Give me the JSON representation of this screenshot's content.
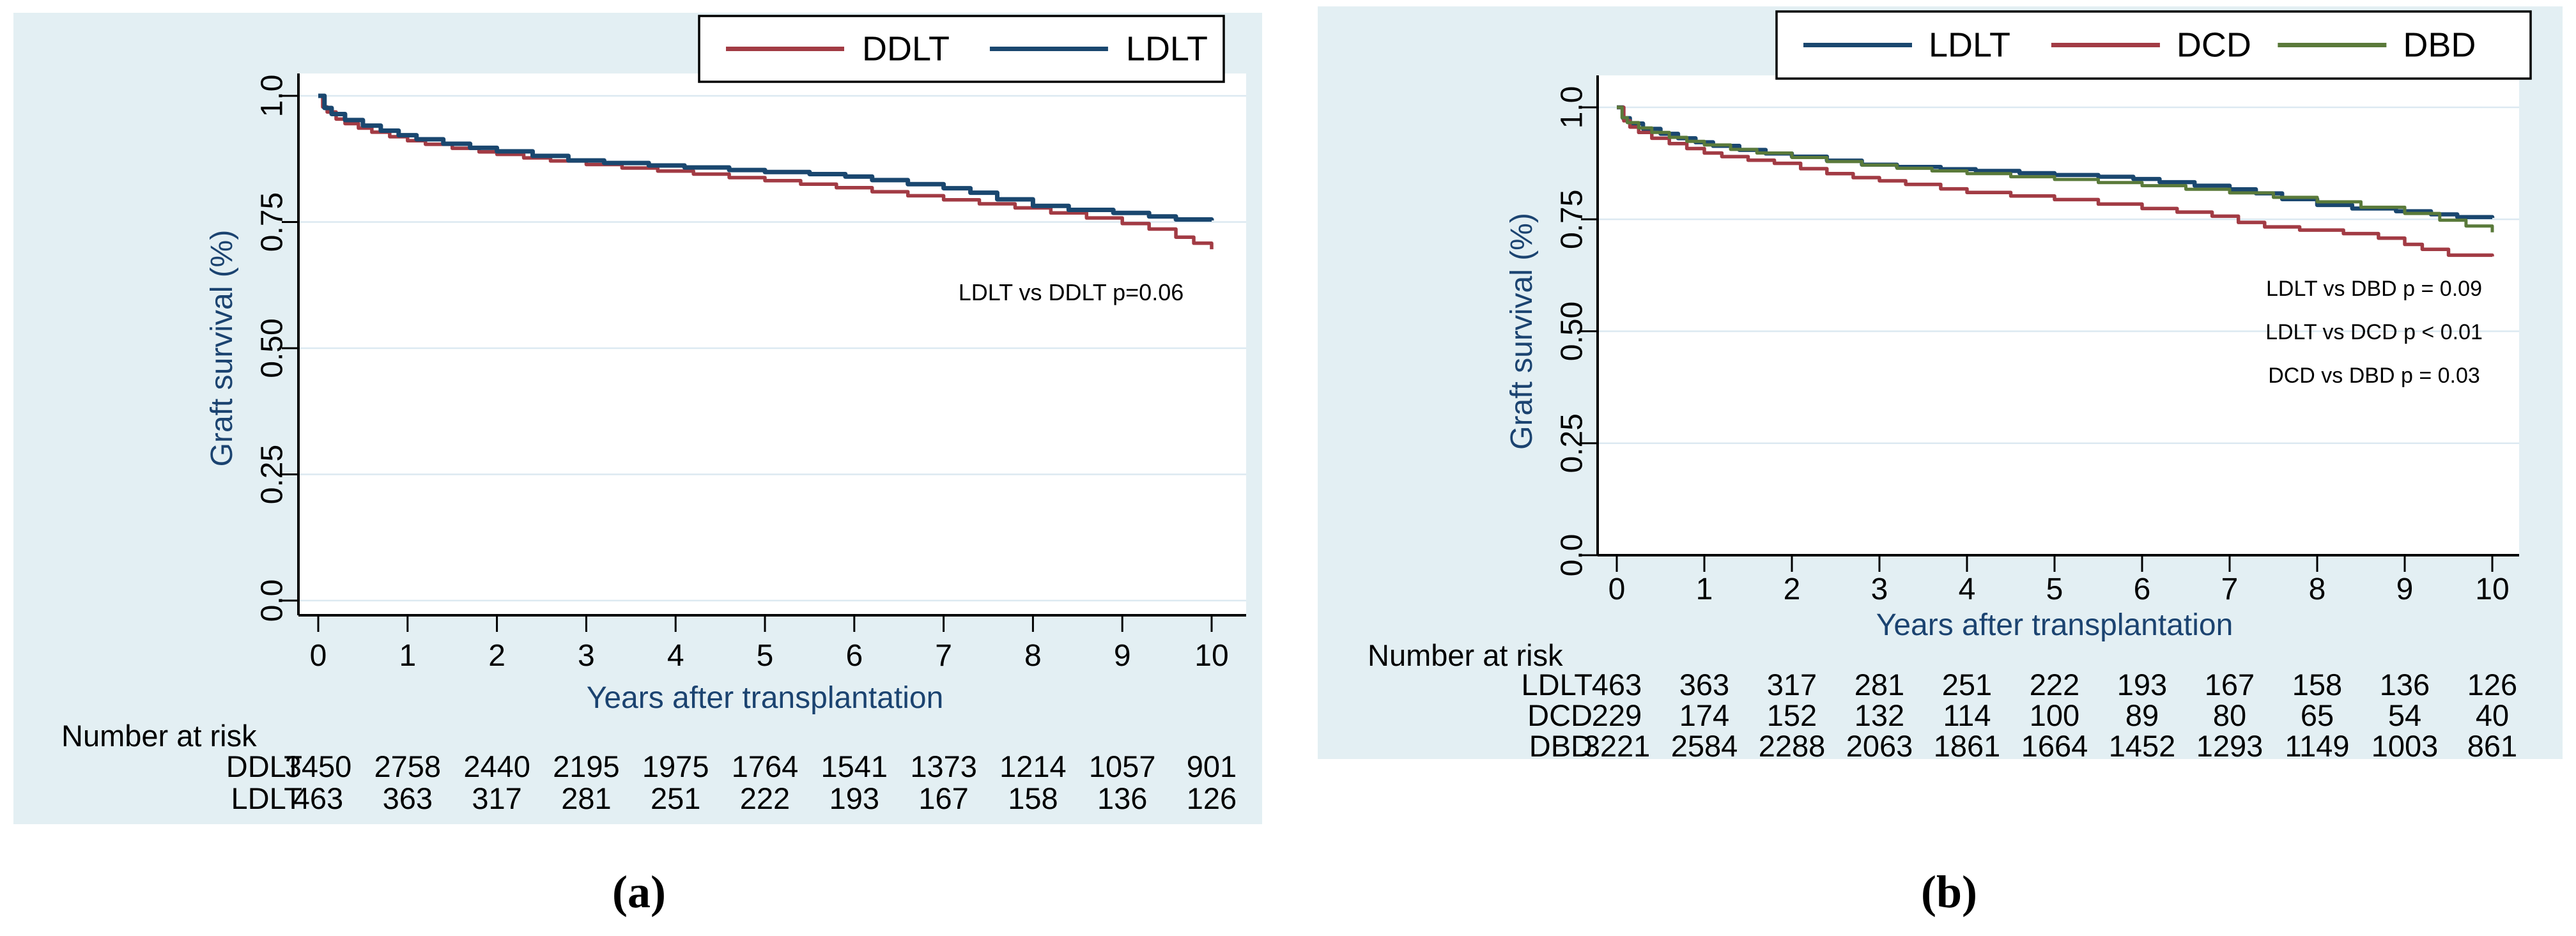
{
  "figure": {
    "captions": {
      "a": "(a)",
      "b": "(b)"
    },
    "colors": {
      "panel_background": "#e3eff3",
      "plot_background": "#ffffff",
      "gridline": "#dce9f1",
      "axis": "#000000",
      "axis_title": "#1b4370",
      "navy": "#1a476f",
      "maroon": "#a23b44",
      "green": "#5a7a3a"
    }
  },
  "chart_data": [
    {
      "panel": "a",
      "type": "line",
      "subtype": "kaplan-meier-step",
      "xlabel": "Years after transplantation",
      "ylabel": "Graft survival (%)",
      "xlim": [
        0,
        10
      ],
      "ylim": [
        0,
        1.04
      ],
      "grid": true,
      "x_ticks": [
        0,
        1,
        2,
        3,
        4,
        5,
        6,
        7,
        8,
        9,
        10
      ],
      "y_tick_labels": [
        "1.0",
        "0.75",
        "0.50",
        "0.25",
        "0.0"
      ],
      "y_tick_values": [
        1.0,
        0.75,
        0.5,
        0.25,
        0.0
      ],
      "legend_position": "top-right",
      "legend": [
        {
          "name": "DDLT",
          "color": "#a23b44"
        },
        {
          "name": "LDLT",
          "color": "#1a476f"
        }
      ],
      "annotations": [
        "LDLT vs DDLT p=0.06"
      ],
      "series": [
        {
          "name": "DDLT",
          "color": "#a23b44",
          "points": [
            [
              0,
              1
            ],
            [
              0.05,
              0.978
            ],
            [
              0.1,
              0.968
            ],
            [
              0.2,
              0.954
            ],
            [
              0.3,
              0.945
            ],
            [
              0.45,
              0.936
            ],
            [
              0.6,
              0.928
            ],
            [
              0.8,
              0.919
            ],
            [
              1,
              0.911
            ],
            [
              1.2,
              0.904
            ],
            [
              1.5,
              0.896
            ],
            [
              1.8,
              0.889
            ],
            [
              2,
              0.884
            ],
            [
              2.3,
              0.877
            ],
            [
              2.6,
              0.871
            ],
            [
              3,
              0.864
            ],
            [
              3.4,
              0.857
            ],
            [
              3.8,
              0.851
            ],
            [
              4.2,
              0.845
            ],
            [
              4.6,
              0.838
            ],
            [
              5,
              0.832
            ],
            [
              5.4,
              0.825
            ],
            [
              5.8,
              0.818
            ],
            [
              6.2,
              0.81
            ],
            [
              6.6,
              0.802
            ],
            [
              7,
              0.794
            ],
            [
              7.4,
              0.786
            ],
            [
              7.8,
              0.778
            ],
            [
              8.2,
              0.768
            ],
            [
              8.6,
              0.758
            ],
            [
              9,
              0.747
            ],
            [
              9.3,
              0.736
            ],
            [
              9.6,
              0.72
            ],
            [
              9.8,
              0.708
            ],
            [
              10,
              0.696
            ]
          ]
        },
        {
          "name": "LDLT",
          "color": "#1a476f",
          "points": [
            [
              0,
              1
            ],
            [
              0.07,
              0.976
            ],
            [
              0.15,
              0.964
            ],
            [
              0.3,
              0.952
            ],
            [
              0.5,
              0.941
            ],
            [
              0.7,
              0.931
            ],
            [
              0.9,
              0.922
            ],
            [
              1.1,
              0.914
            ],
            [
              1.4,
              0.905
            ],
            [
              1.7,
              0.897
            ],
            [
              2,
              0.89
            ],
            [
              2.4,
              0.881
            ],
            [
              2.8,
              0.872
            ],
            [
              3.2,
              0.867
            ],
            [
              3.7,
              0.862
            ],
            [
              4.1,
              0.858
            ],
            [
              4.6,
              0.853
            ],
            [
              5,
              0.849
            ],
            [
              5.5,
              0.845
            ],
            [
              5.9,
              0.84
            ],
            [
              6.2,
              0.833
            ],
            [
              6.6,
              0.825
            ],
            [
              7,
              0.817
            ],
            [
              7.3,
              0.808
            ],
            [
              7.6,
              0.795
            ],
            [
              8,
              0.782
            ],
            [
              8.4,
              0.774
            ],
            [
              8.9,
              0.768
            ],
            [
              9.3,
              0.761
            ],
            [
              9.6,
              0.755
            ],
            [
              10,
              0.753
            ]
          ]
        }
      ],
      "risk_table": {
        "title": "Number at risk",
        "time_points": [
          0,
          1,
          2,
          3,
          4,
          5,
          6,
          7,
          8,
          9,
          10
        ],
        "rows": [
          {
            "label": "DDLT",
            "values": [
              3450,
              2758,
              2440,
              2195,
              1975,
              1764,
              1541,
              1373,
              1214,
              1057,
              901
            ]
          },
          {
            "label": "LDLT",
            "values": [
              463,
              363,
              317,
              281,
              251,
              222,
              193,
              167,
              158,
              136,
              126
            ]
          }
        ]
      }
    },
    {
      "panel": "b",
      "type": "line",
      "subtype": "kaplan-meier-step",
      "xlabel": "Years after transplantation",
      "ylabel": "Graft survival (%)",
      "xlim": [
        0,
        10
      ],
      "ylim": [
        0,
        1.04
      ],
      "grid": true,
      "x_ticks": [
        0,
        1,
        2,
        3,
        4,
        5,
        6,
        7,
        8,
        9,
        10
      ],
      "y_tick_labels": [
        "1.0",
        "0.75",
        "0.50",
        "0.25",
        "0.0"
      ],
      "y_tick_values": [
        1.0,
        0.75,
        0.5,
        0.25,
        0.0
      ],
      "legend_position": "top-right",
      "legend": [
        {
          "name": "LDLT",
          "color": "#1a476f"
        },
        {
          "name": "DCD",
          "color": "#a23b44"
        },
        {
          "name": "DBD",
          "color": "#5a7a3a"
        }
      ],
      "annotations": [
        "LDLT vs DBD p = 0.09",
        "LDLT vs DCD p < 0.01",
        "DCD vs DBD p = 0.03"
      ],
      "series": [
        {
          "name": "LDLT",
          "color": "#1a476f",
          "points": [
            [
              0,
              1
            ],
            [
              0.07,
              0.976
            ],
            [
              0.15,
              0.964
            ],
            [
              0.3,
              0.952
            ],
            [
              0.5,
              0.941
            ],
            [
              0.7,
              0.931
            ],
            [
              0.9,
              0.922
            ],
            [
              1.1,
              0.914
            ],
            [
              1.4,
              0.905
            ],
            [
              1.7,
              0.897
            ],
            [
              2,
              0.89
            ],
            [
              2.4,
              0.881
            ],
            [
              2.8,
              0.872
            ],
            [
              3.2,
              0.867
            ],
            [
              3.7,
              0.862
            ],
            [
              4.1,
              0.858
            ],
            [
              4.6,
              0.853
            ],
            [
              5,
              0.849
            ],
            [
              5.5,
              0.845
            ],
            [
              5.9,
              0.84
            ],
            [
              6.2,
              0.833
            ],
            [
              6.6,
              0.825
            ],
            [
              7,
              0.817
            ],
            [
              7.3,
              0.808
            ],
            [
              7.6,
              0.795
            ],
            [
              8,
              0.782
            ],
            [
              8.4,
              0.774
            ],
            [
              8.9,
              0.768
            ],
            [
              9.3,
              0.761
            ],
            [
              9.6,
              0.755
            ],
            [
              10,
              0.753
            ]
          ]
        },
        {
          "name": "DCD",
          "color": "#a23b44",
          "points": [
            [
              0,
              1
            ],
            [
              0.08,
              0.97
            ],
            [
              0.15,
              0.956
            ],
            [
              0.25,
              0.944
            ],
            [
              0.4,
              0.931
            ],
            [
              0.6,
              0.919
            ],
            [
              0.8,
              0.908
            ],
            [
              1,
              0.898
            ],
            [
              1.2,
              0.89
            ],
            [
              1.5,
              0.882
            ],
            [
              1.8,
              0.875
            ],
            [
              2.1,
              0.863
            ],
            [
              2.4,
              0.852
            ],
            [
              2.7,
              0.843
            ],
            [
              3,
              0.836
            ],
            [
              3.3,
              0.828
            ],
            [
              3.7,
              0.818
            ],
            [
              4,
              0.81
            ],
            [
              4.5,
              0.802
            ],
            [
              5,
              0.794
            ],
            [
              5.5,
              0.784
            ],
            [
              6,
              0.774
            ],
            [
              6.4,
              0.766
            ],
            [
              6.8,
              0.757
            ],
            [
              7.1,
              0.743
            ],
            [
              7.4,
              0.733
            ],
            [
              7.8,
              0.726
            ],
            [
              8.3,
              0.718
            ],
            [
              8.7,
              0.708
            ],
            [
              9,
              0.694
            ],
            [
              9.2,
              0.683
            ],
            [
              9.5,
              0.67
            ],
            [
              10,
              0.667
            ]
          ]
        },
        {
          "name": "DBD",
          "color": "#5a7a3a",
          "points": [
            [
              0,
              1
            ],
            [
              0.06,
              0.977
            ],
            [
              0.12,
              0.966
            ],
            [
              0.25,
              0.954
            ],
            [
              0.4,
              0.944
            ],
            [
              0.6,
              0.933
            ],
            [
              0.8,
              0.924
            ],
            [
              1,
              0.916
            ],
            [
              1.3,
              0.906
            ],
            [
              1.6,
              0.898
            ],
            [
              2,
              0.888
            ],
            [
              2.4,
              0.879
            ],
            [
              2.8,
              0.871
            ],
            [
              3.2,
              0.864
            ],
            [
              3.6,
              0.858
            ],
            [
              4,
              0.852
            ],
            [
              4.5,
              0.845
            ],
            [
              5,
              0.839
            ],
            [
              5.5,
              0.832
            ],
            [
              6,
              0.825
            ],
            [
              6.5,
              0.817
            ],
            [
              7,
              0.809
            ],
            [
              7.5,
              0.799
            ],
            [
              8,
              0.789
            ],
            [
              8.5,
              0.777
            ],
            [
              9,
              0.763
            ],
            [
              9.4,
              0.748
            ],
            [
              9.7,
              0.735
            ],
            [
              10,
              0.721
            ]
          ]
        }
      ],
      "risk_table": {
        "title": "Number at risk",
        "time_points": [
          0,
          1,
          2,
          3,
          4,
          5,
          6,
          7,
          8,
          9,
          10
        ],
        "rows": [
          {
            "label": "LDLT",
            "values": [
              463,
              363,
              317,
              281,
              251,
              222,
              193,
              167,
              158,
              136,
              126
            ]
          },
          {
            "label": "DCD",
            "values": [
              229,
              174,
              152,
              132,
              114,
              100,
              89,
              80,
              65,
              54,
              40
            ]
          },
          {
            "label": "DBD",
            "values": [
              3221,
              2584,
              2288,
              2063,
              1861,
              1664,
              1452,
              1293,
              1149,
              1003,
              861
            ]
          }
        ]
      }
    }
  ]
}
